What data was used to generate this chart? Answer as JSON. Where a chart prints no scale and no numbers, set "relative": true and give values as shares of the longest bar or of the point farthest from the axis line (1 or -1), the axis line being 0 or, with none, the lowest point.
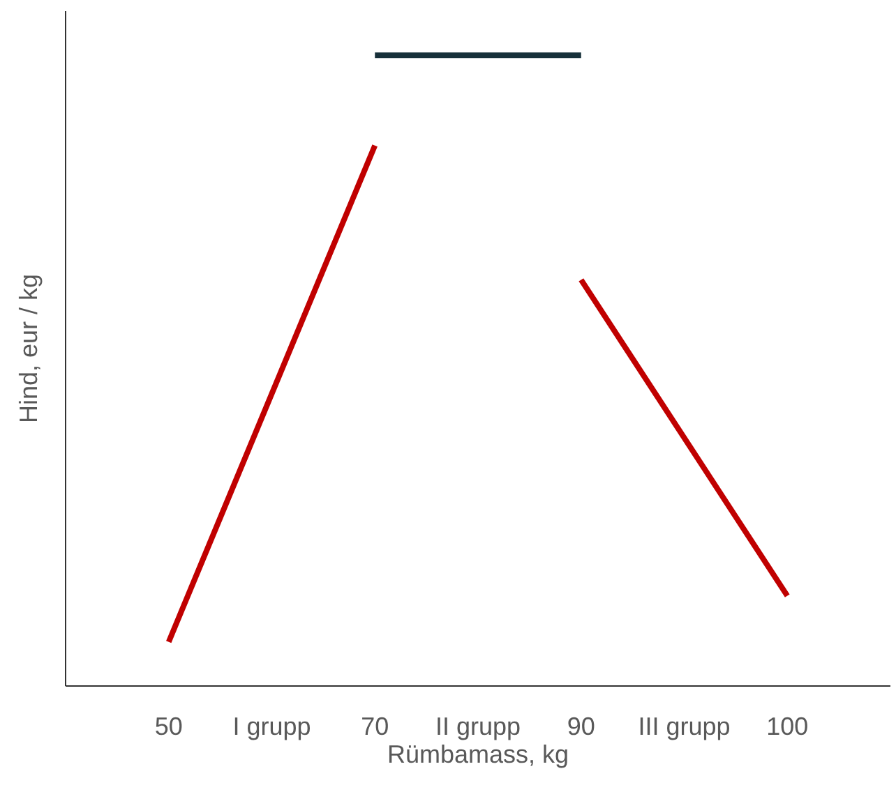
{
  "chart_data": {
    "type": "line",
    "xlabel": "Rümbamass, kg",
    "ylabel": "Hind, eur / kg",
    "relative": true,
    "grid": false,
    "legend": false,
    "marker": "none",
    "line_style": "solid",
    "categories": [
      null,
      "50",
      "I grupp",
      "70",
      "II grupp",
      "90",
      "III grupp",
      "100",
      null
    ],
    "series": [
      {
        "color": "#c00000",
        "values": [
          null,
          0.07,
          null,
          0.857,
          null,
          null,
          null,
          null,
          null
        ]
      },
      {
        "color": "#17303a",
        "values": [
          null,
          null,
          null,
          1,
          null,
          1,
          null,
          null,
          null
        ]
      },
      {
        "color": "#c00000",
        "values": [
          null,
          null,
          null,
          null,
          null,
          0.644,
          null,
          0.143,
          null
        ]
      }
    ]
  }
}
